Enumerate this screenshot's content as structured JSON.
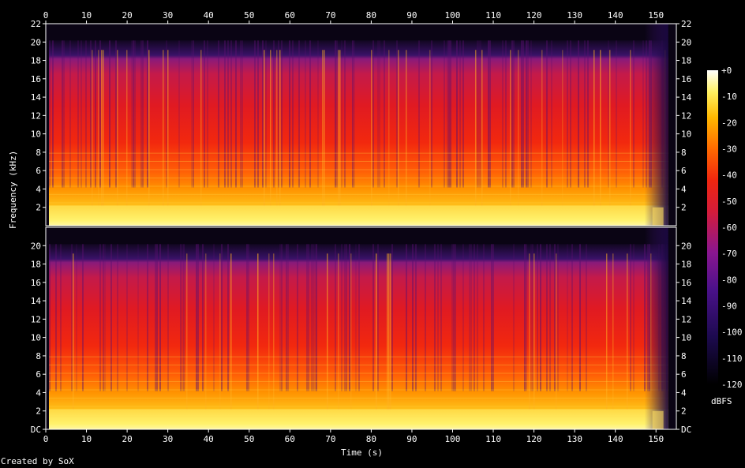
{
  "chart_data": {
    "type": "heatmap",
    "title": "",
    "xlabel": "Time (s)",
    "ylabel": "Frequency (kHz)",
    "xlim": [
      0,
      155
    ],
    "ylim": [
      0,
      22
    ],
    "channels": 2,
    "x_ticks": [
      "0",
      "10",
      "20",
      "30",
      "40",
      "50",
      "60",
      "70",
      "80",
      "90",
      "100",
      "110",
      "120",
      "130",
      "140",
      "150"
    ],
    "y_ticks_top": [
      "2",
      "4",
      "6",
      "8",
      "10",
      "12",
      "14",
      "16",
      "18",
      "20",
      "22"
    ],
    "y_ticks_bottom": [
      "DC",
      "2",
      "4",
      "6",
      "8",
      "10",
      "12",
      "14",
      "16",
      "18",
      "20"
    ],
    "colorbar": {
      "unit": "dBFS",
      "ticks": [
        "+0",
        "-10",
        "-20",
        "-30",
        "-40",
        "-50",
        "-60",
        "-70",
        "-80",
        "-90",
        "-100",
        "-110",
        "-120"
      ],
      "range": [
        -120,
        0
      ]
    },
    "audio_end_s": 153,
    "content_cutoff_khz": 20,
    "credit": "Created by SoX"
  },
  "colors": {
    "background": "#000000",
    "axis": "#ffffff"
  }
}
